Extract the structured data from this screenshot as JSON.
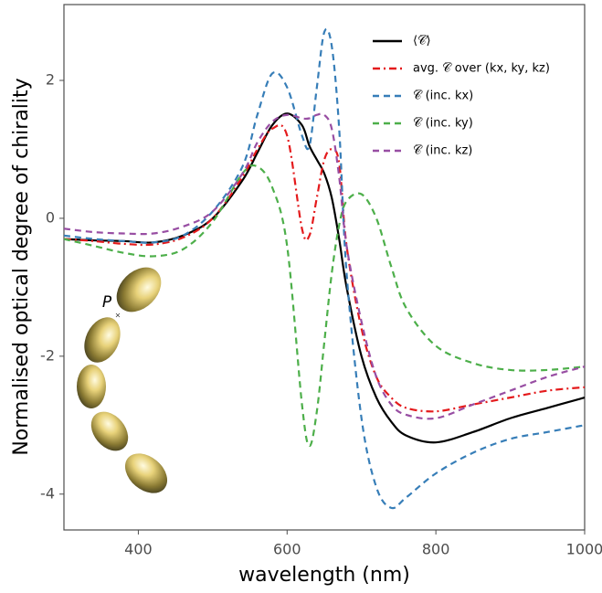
{
  "chart_data": {
    "type": "line",
    "x_label": "wavelength (nm)",
    "y_label": "Normalised optical degree of chirality",
    "annotation": "P",
    "x": [
      300,
      340,
      380,
      420,
      460,
      500,
      540,
      560,
      580,
      600,
      620,
      630,
      640,
      650,
      660,
      670,
      680,
      700,
      720,
      740,
      760,
      800,
      850,
      900,
      950,
      1000
    ],
    "series": [
      {
        "name": "⟨𝒞̅⟩",
        "color": "#000000",
        "dash": "solid",
        "values": [
          -0.3,
          -0.32,
          -0.33,
          -0.35,
          -0.25,
          0.0,
          0.55,
          0.95,
          1.35,
          1.52,
          1.35,
          1.05,
          0.85,
          0.65,
          0.3,
          -0.3,
          -1.0,
          -2.0,
          -2.6,
          -2.95,
          -3.15,
          -3.25,
          -3.1,
          -2.9,
          -2.75,
          -2.6
        ]
      },
      {
        "name": "avg. 𝒞̅ over (kx, ky, kz)",
        "color": "#e41a1c",
        "dash": "dashdot",
        "values": [
          -0.3,
          -0.33,
          -0.37,
          -0.38,
          -0.28,
          0.0,
          0.6,
          1.0,
          1.3,
          1.2,
          -0.15,
          -0.25,
          0.3,
          0.85,
          1.0,
          0.8,
          -0.4,
          -1.6,
          -2.3,
          -2.6,
          -2.75,
          -2.8,
          -2.7,
          -2.6,
          -2.5,
          -2.45
        ]
      },
      {
        "name": "𝒞̅ (inc. kx)",
        "color": "#377eb8",
        "dash": "dashed",
        "values": [
          -0.25,
          -0.3,
          -0.33,
          -0.35,
          -0.25,
          0.1,
          0.75,
          1.5,
          2.1,
          1.9,
          1.2,
          1.05,
          1.9,
          2.7,
          2.5,
          1.3,
          -0.8,
          -2.9,
          -3.9,
          -4.2,
          -4.05,
          -3.7,
          -3.4,
          -3.2,
          -3.1,
          -3.0
        ]
      },
      {
        "name": "𝒞̅ (inc. ky)",
        "color": "#4daf4a",
        "dash": "dashed",
        "values": [
          -0.3,
          -0.4,
          -0.5,
          -0.55,
          -0.45,
          -0.05,
          0.65,
          0.75,
          0.45,
          -0.4,
          -2.7,
          -3.3,
          -2.8,
          -1.8,
          -0.8,
          -0.1,
          0.25,
          0.35,
          0.0,
          -0.7,
          -1.3,
          -1.85,
          -2.1,
          -2.2,
          -2.2,
          -2.15
        ]
      },
      {
        "name": "𝒞̅ (inc. kz)",
        "color": "#984ea3",
        "dash": "dashed",
        "values": [
          -0.15,
          -0.2,
          -0.22,
          -0.22,
          -0.12,
          0.1,
          0.65,
          1.1,
          1.4,
          1.5,
          1.45,
          1.45,
          1.5,
          1.5,
          1.3,
          0.6,
          -0.4,
          -1.5,
          -2.3,
          -2.7,
          -2.85,
          -2.9,
          -2.7,
          -2.5,
          -2.3,
          -2.15
        ]
      }
    ],
    "xlim": [
      300,
      1000
    ],
    "ylim": [
      -4.52,
      3.1
    ],
    "xticks": [
      400,
      600,
      800,
      1000
    ],
    "yticks": [
      -4,
      -2,
      0,
      2
    ],
    "grid": false,
    "legend": "top-right"
  }
}
